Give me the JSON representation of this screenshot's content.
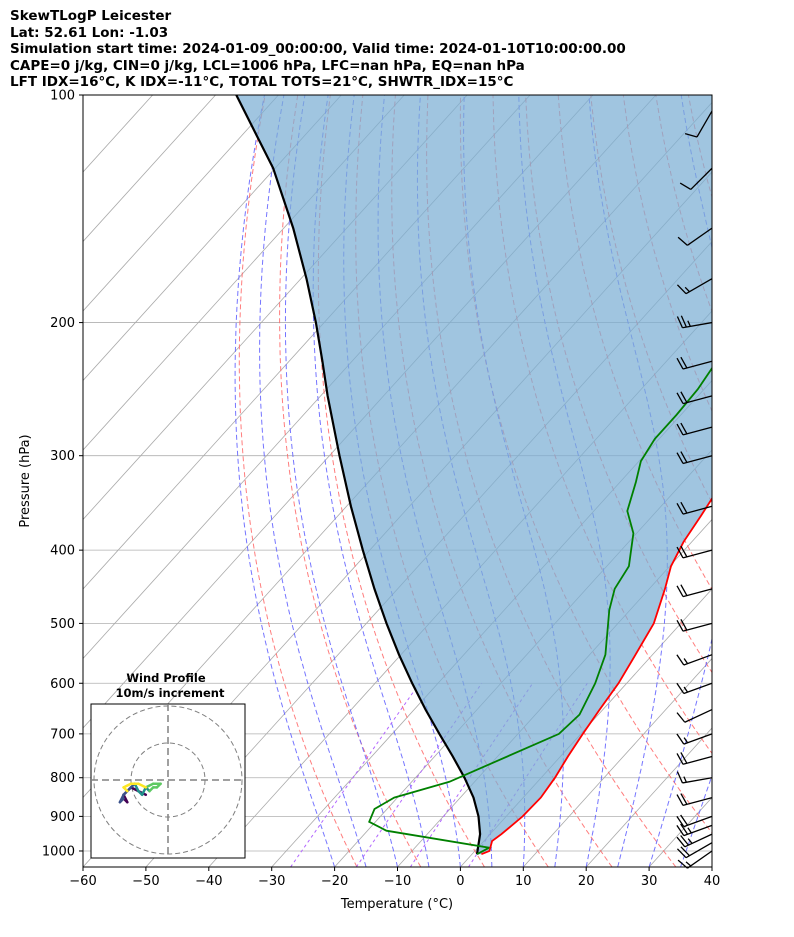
{
  "header": {
    "line1": "SkewTLogP Leicester",
    "line2": "Lat: 52.61   Lon: -1.03",
    "line3": "Simulation start time: 2024-01-09_00:00:00, Valid time: 2024-01-10T10:00:00.00",
    "line4": "CAPE=0 j/kg, CIN=0 j/kg, LCL=1006 hPa, LFC=nan hPa, EQ=nan hPa",
    "line5": "LFT IDX=16°C, K IDX=-11°C, TOTAL TOTS=21°C, SHWTR_IDX=15°C"
  },
  "chart_data": {
    "type": "line",
    "subtype": "skew-t log-p",
    "xlabel": "Temperature (°C)",
    "ylabel": "Pressure (hPa)",
    "xlim": [
      -60,
      40
    ],
    "ylim": [
      1050,
      100
    ],
    "y_scale": "log",
    "x_ticks": [
      -60,
      -50,
      -40,
      -30,
      -20,
      -10,
      0,
      10,
      20,
      30,
      40
    ],
    "x_tick_labels": [
      "−60",
      "−50",
      "−40",
      "−30",
      "−20",
      "−10",
      "0",
      "10",
      "20",
      "30",
      "40"
    ],
    "y_ticks": [
      100,
      200,
      300,
      400,
      500,
      600,
      700,
      800,
      900,
      1000
    ],
    "y_tick_labels": [
      "100",
      "200",
      "300",
      "400",
      "500",
      "600",
      "700",
      "800",
      "900",
      "1000"
    ],
    "grid": true,
    "colors": {
      "temperature": "#ff0000",
      "dewpoint": "#008000",
      "parcel": "#000000",
      "cin_shade": "#7bafd4",
      "dry_adiabats": "#ff6666",
      "moist_adiabats": "#6666ff",
      "mixing_ratio": "#b266ff",
      "isotherms": "#aaaaaa"
    },
    "series": [
      {
        "key": "temperature",
        "points": [
          [
            1.5,
            1010
          ],
          [
            2.3,
            1000
          ],
          [
            1.3,
            970
          ],
          [
            1.8,
            950
          ],
          [
            2.6,
            900
          ],
          [
            2.8,
            850
          ],
          [
            2.2,
            800
          ],
          [
            1.2,
            750
          ],
          [
            0.3,
            700
          ],
          [
            -0.5,
            650
          ],
          [
            -1.3,
            600
          ],
          [
            -2.7,
            550
          ],
          [
            -4.3,
            500
          ],
          [
            -7.5,
            450
          ],
          [
            -9.8,
            420
          ],
          [
            -11.3,
            390
          ],
          [
            -12.3,
            360
          ],
          [
            -13.5,
            330
          ],
          [
            -14.2,
            300
          ],
          [
            -14.3,
            285
          ],
          [
            -13.3,
            260
          ],
          [
            -12.2,
            245
          ],
          [
            -9.5,
            225
          ],
          [
            -7.2,
            210
          ],
          [
            -6.3,
            200
          ],
          [
            -4,
            180
          ],
          [
            -3.2,
            168
          ],
          [
            -1.5,
            155
          ],
          [
            1,
            140
          ],
          [
            3,
            130
          ],
          [
            4.5,
            118
          ],
          [
            6.5,
            108
          ],
          [
            8,
            100
          ]
        ]
      },
      {
        "key": "dewpoint",
        "points": [
          [
            0.8,
            1010
          ],
          [
            1.8,
            990
          ],
          [
            -17,
            940
          ],
          [
            -21,
            915
          ],
          [
            -22,
            880
          ],
          [
            -20.5,
            850
          ],
          [
            -14,
            810
          ],
          [
            -3.5,
            700
          ],
          [
            -3,
            660
          ],
          [
            -5,
            600
          ],
          [
            -7.5,
            550
          ],
          [
            -13.3,
            480
          ],
          [
            -15.5,
            450
          ],
          [
            -16.5,
            420
          ],
          [
            -20.5,
            380
          ],
          [
            -24.7,
            355
          ],
          [
            -27.5,
            325
          ],
          [
            -29.7,
            305
          ],
          [
            -30.7,
            285
          ],
          [
            -30.7,
            265
          ],
          [
            -31,
            245
          ],
          [
            -32,
            225
          ],
          [
            -32.7,
            210
          ],
          [
            -33,
            200
          ],
          [
            -34.2,
            185
          ],
          [
            -35.4,
            170
          ],
          [
            -36,
            160
          ],
          [
            -35,
            150
          ],
          [
            -33.2,
            140
          ],
          [
            -31.1,
            130
          ],
          [
            -30,
            120
          ],
          [
            -29,
            110
          ],
          [
            -28.8,
            100
          ]
        ]
      },
      {
        "key": "parcel",
        "points": [
          [
            0.8,
            1010
          ],
          [
            -1.6,
            950
          ],
          [
            -4.4,
            900
          ],
          [
            -7.9,
            850
          ],
          [
            -12.2,
            800
          ],
          [
            -17.1,
            750
          ],
          [
            -22.5,
            700
          ],
          [
            -28.2,
            650
          ],
          [
            -34.1,
            600
          ],
          [
            -40.3,
            550
          ],
          [
            -46.8,
            500
          ],
          [
            -53.7,
            450
          ],
          [
            -61.1,
            400
          ],
          [
            -69.3,
            350
          ],
          [
            -78.4,
            300
          ],
          [
            -88.9,
            250
          ],
          [
            -94.7,
            225
          ],
          [
            -101.3,
            200
          ],
          [
            -109.1,
            175
          ],
          [
            -118.5,
            150
          ],
          [
            -130.3,
            125
          ],
          [
            -146.7,
            100
          ]
        ]
      }
    ],
    "wind_barbs": [
      {
        "p": 1000,
        "dir": 235,
        "spd": 18
      },
      {
        "p": 975,
        "dir": 240,
        "spd": 22
      },
      {
        "p": 950,
        "dir": 245,
        "spd": 25
      },
      {
        "p": 925,
        "dir": 250,
        "spd": 25
      },
      {
        "p": 900,
        "dir": 250,
        "spd": 23
      },
      {
        "p": 850,
        "dir": 255,
        "spd": 22
      },
      {
        "p": 800,
        "dir": 260,
        "spd": 18
      },
      {
        "p": 750,
        "dir": 255,
        "spd": 22
      },
      {
        "p": 700,
        "dir": 250,
        "spd": 15
      },
      {
        "p": 650,
        "dir": 245,
        "spd": 12
      },
      {
        "p": 600,
        "dir": 250,
        "spd": 15
      },
      {
        "p": 550,
        "dir": 250,
        "spd": 18
      },
      {
        "p": 500,
        "dir": 255,
        "spd": 20
      },
      {
        "p": 450,
        "dir": 255,
        "spd": 22
      },
      {
        "p": 400,
        "dir": 255,
        "spd": 23
      },
      {
        "p": 350,
        "dir": 255,
        "spd": 20
      },
      {
        "p": 300,
        "dir": 255,
        "spd": 22
      },
      {
        "p": 275,
        "dir": 255,
        "spd": 20
      },
      {
        "p": 250,
        "dir": 255,
        "spd": 22
      },
      {
        "p": 225,
        "dir": 255,
        "spd": 24
      },
      {
        "p": 200,
        "dir": 260,
        "spd": 25
      },
      {
        "p": 175,
        "dir": 240,
        "spd": 15
      },
      {
        "p": 150,
        "dir": 235,
        "spd": 12
      },
      {
        "p": 125,
        "dir": 225,
        "spd": 10
      },
      {
        "p": 105,
        "dir": 210,
        "spd": 10
      }
    ],
    "hodograph": {
      "title": "Wind Profile",
      "subtitle": "10m/s increment",
      "points": [
        [
          -6,
          -4
        ],
        [
          -8,
          -3
        ],
        [
          -10,
          -2
        ],
        [
          -12,
          -4
        ],
        [
          -11,
          -6
        ],
        [
          -12,
          -5
        ],
        [
          -13,
          -6
        ],
        [
          -12,
          -4
        ],
        [
          -11,
          -3
        ],
        [
          -10,
          -2
        ],
        [
          -9,
          -1
        ],
        [
          -8,
          -3
        ],
        [
          -7,
          -4
        ],
        [
          -6,
          -2
        ],
        [
          -5,
          -3
        ],
        [
          -4,
          -2
        ],
        [
          -3,
          -2
        ],
        [
          -2,
          -1
        ],
        [
          -4,
          -1
        ],
        [
          -6,
          -2
        ],
        [
          -8,
          -1
        ],
        [
          -10,
          -1
        ],
        [
          -12,
          -2
        ],
        [
          -11,
          -3
        ]
      ]
    }
  }
}
